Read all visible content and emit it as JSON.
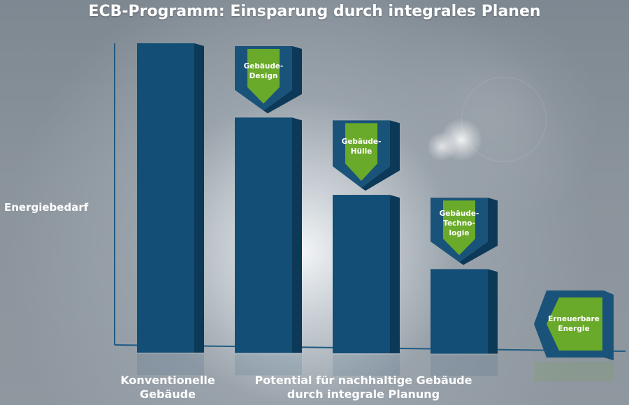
{
  "chart_data": {
    "type": "bar",
    "title": "ECB-Programm: Einsparung durch integrales Planen",
    "ylabel": "Energiebedarf",
    "group_labels": [
      {
        "lines": [
          "Konventionelle",
          "Gebäude"
        ]
      },
      {
        "lines": [
          "Potential für nachhaltige Gebäude",
          "durch integrale Planung"
        ]
      }
    ],
    "values": [
      100,
      76,
      51,
      27,
      0
    ],
    "steps": [
      {
        "lines": [
          "Gebäude-",
          "Design"
        ],
        "savings": 24
      },
      {
        "lines": [
          "Gebäude-",
          "Hülle"
        ],
        "savings": 25
      },
      {
        "lines": [
          "Gebäude-",
          "Techno-",
          "logie"
        ],
        "savings": 24
      },
      {
        "lines": [
          "Erneuerbare",
          "Energie"
        ],
        "savings": 27
      }
    ],
    "ylim": [
      0,
      100
    ],
    "grid": false,
    "colors": {
      "bar": "#124e75",
      "bar_side": "#0c3958",
      "step": "#6aaa2a",
      "step_frame": "#1a537a",
      "axis": "#1f5b82"
    }
  }
}
